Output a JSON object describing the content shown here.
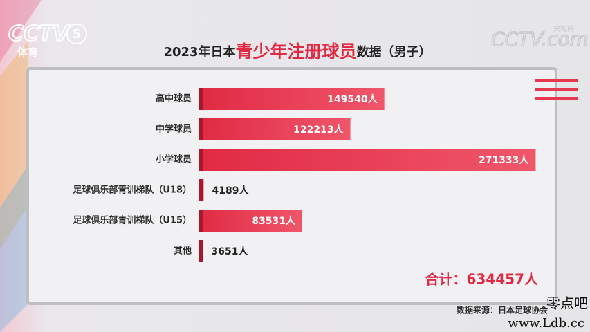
{
  "chart_data": {
    "type": "bar",
    "orientation": "horizontal",
    "title": [
      "2023年日本",
      "青少年注册球员",
      "数据（男子）"
    ],
    "categories": [
      "高中球员",
      "中学球员",
      "小学球员",
      "足球俱乐部青训梯队（U18）",
      "足球俱乐部青训梯队（U15）",
      "其他"
    ],
    "values": [
      149540,
      122213,
      271333,
      4189,
      83531,
      3651
    ],
    "value_labels": [
      "149540人",
      "122213人",
      "271333人",
      "4189人",
      "83531人",
      "3651人"
    ],
    "color": "#e8384f",
    "xlim": [
      0,
      280000
    ],
    "annotations": [
      "合计：634457人"
    ],
    "source": "数据来源：日本足球协会"
  },
  "overlay": {
    "channel": "CCTV",
    "channel_number": "5",
    "channel_name": "体育",
    "site": "CCTV.com",
    "site_name": "央视网",
    "watermark": "零点吧",
    "watermark_url": "www.Ldb.cc"
  }
}
